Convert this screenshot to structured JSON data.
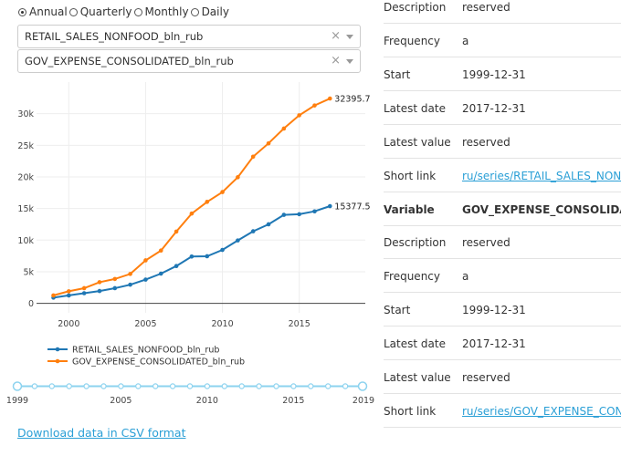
{
  "frequency": {
    "options": [
      {
        "label": "Annual",
        "checked": true
      },
      {
        "label": "Quarterly",
        "checked": false
      },
      {
        "label": "Monthly",
        "checked": false
      },
      {
        "label": "Daily",
        "checked": false
      }
    ]
  },
  "selectors": [
    {
      "value": "RETAIL_SALES_NONFOOD_bln_rub"
    },
    {
      "value": "GOV_EXPENSE_CONSOLIDATED_bln_rub"
    }
  ],
  "icons": {
    "clear": "×",
    "caret": "chevron-down-icon"
  },
  "chart_data": {
    "type": "line",
    "x": [
      1999,
      2000,
      2001,
      2002,
      2003,
      2004,
      2005,
      2006,
      2007,
      2008,
      2009,
      2010,
      2011,
      2012,
      2013,
      2014,
      2015,
      2016,
      2017
    ],
    "series": [
      {
        "name": "RETAIL_SALES_NONFOOD_bln_rub",
        "color": "#1f77b4",
        "values": [
          900,
          1250,
          1600,
          1950,
          2400,
          2950,
          3750,
          4700,
          5900,
          7400,
          7450,
          8450,
          9950,
          11400,
          12500,
          14000,
          14100,
          14550,
          15377.5
        ]
      },
      {
        "name": "GOV_EXPENSE_CONSOLIDATED_bln_rub",
        "color": "#ff7f0e",
        "values": [
          1250,
          1900,
          2400,
          3350,
          3850,
          4650,
          6800,
          8350,
          11350,
          14200,
          16050,
          17600,
          19950,
          23200,
          25300,
          27650,
          29750,
          31300,
          32395.7
        ]
      }
    ],
    "end_labels": [
      "15377.5",
      "32395.7"
    ],
    "x_ticks": [
      "2000",
      "2005",
      "2010",
      "2015"
    ],
    "y_ticks": [
      "0",
      "5k",
      "10k",
      "15k",
      "20k",
      "25k",
      "30k"
    ],
    "y_tick_values": [
      0,
      5000,
      10000,
      15000,
      20000,
      25000,
      30000
    ],
    "xlim": [
      1997.9,
      2019.3
    ],
    "ylim": [
      -1500,
      35000
    ],
    "grid": true,
    "legend_placement": "bottom-left"
  },
  "range_slider": {
    "start_label": "1999",
    "end_label": "2019",
    "tick_labels": [
      "2005",
      "2010",
      "2015"
    ],
    "tick_values": [
      2005,
      2010,
      2015
    ],
    "range": [
      1999,
      2019
    ]
  },
  "download_link": "Download data in CSV format",
  "info_rows": [
    {
      "key": "Description",
      "value": "reserved"
    },
    {
      "key": "Frequency",
      "value": "a"
    },
    {
      "key": "Start",
      "value": "1999-12-31"
    },
    {
      "key": "Latest date",
      "value": "2017-12-31"
    },
    {
      "key": "Latest value",
      "value": "reserved"
    },
    {
      "key": "Short link",
      "value": "ru/series/RETAIL_SALES_NONFOOD_bln_rub",
      "link": true
    },
    {
      "key": "Variable",
      "value": "GOV_EXPENSE_CONSOLIDATED_bln_rub",
      "head": true
    },
    {
      "key": "Description",
      "value": "reserved"
    },
    {
      "key": "Frequency",
      "value": "a"
    },
    {
      "key": "Start",
      "value": "1999-12-31"
    },
    {
      "key": "Latest date",
      "value": "2017-12-31"
    },
    {
      "key": "Latest value",
      "value": "reserved"
    },
    {
      "key": "Short link",
      "value": "ru/series/GOV_EXPENSE_CONSOLIDATED_bln_rub",
      "link": true
    }
  ]
}
